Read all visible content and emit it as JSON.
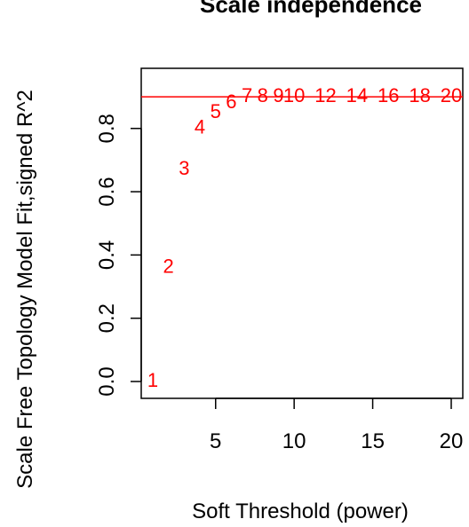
{
  "chart_data": {
    "type": "scatter",
    "title": "Scale independence",
    "xlabel": "Soft Threshold (power)",
    "ylabel": "Scale Free Topology Model Fit,signed R^2",
    "xlim": [
      1,
      20
    ],
    "ylim": [
      0,
      0.92
    ],
    "x_ticks": [
      5,
      10,
      15,
      20
    ],
    "y_ticks": [
      0.0,
      0.2,
      0.4,
      0.6,
      0.8
    ],
    "y_tick_labels": [
      "0.0",
      "0.2",
      "0.4",
      "0.6",
      "0.8"
    ],
    "points": [
      {
        "x": 1,
        "y": 0.0,
        "label": "1"
      },
      {
        "x": 2,
        "y": 0.36,
        "label": "2"
      },
      {
        "x": 3,
        "y": 0.67,
        "label": "3"
      },
      {
        "x": 4,
        "y": 0.8,
        "label": "4"
      },
      {
        "x": 5,
        "y": 0.85,
        "label": "5"
      },
      {
        "x": 6,
        "y": 0.88,
        "label": "6"
      },
      {
        "x": 7,
        "y": 0.9,
        "label": "7"
      },
      {
        "x": 8,
        "y": 0.9,
        "label": "8"
      },
      {
        "x": 9,
        "y": 0.9,
        "label": "9"
      },
      {
        "x": 10,
        "y": 0.9,
        "label": "10"
      },
      {
        "x": 12,
        "y": 0.9,
        "label": "12"
      },
      {
        "x": 14,
        "y": 0.9,
        "label": "14"
      },
      {
        "x": 16,
        "y": 0.9,
        "label": "16"
      },
      {
        "x": 18,
        "y": 0.9,
        "label": "18"
      },
      {
        "x": 20,
        "y": 0.9,
        "label": "20"
      }
    ],
    "hline": 0.9,
    "point_color": "#ff0000",
    "hline_color": "#ff0000",
    "axis_color": "#000000",
    "grid": false,
    "legend": "none"
  }
}
